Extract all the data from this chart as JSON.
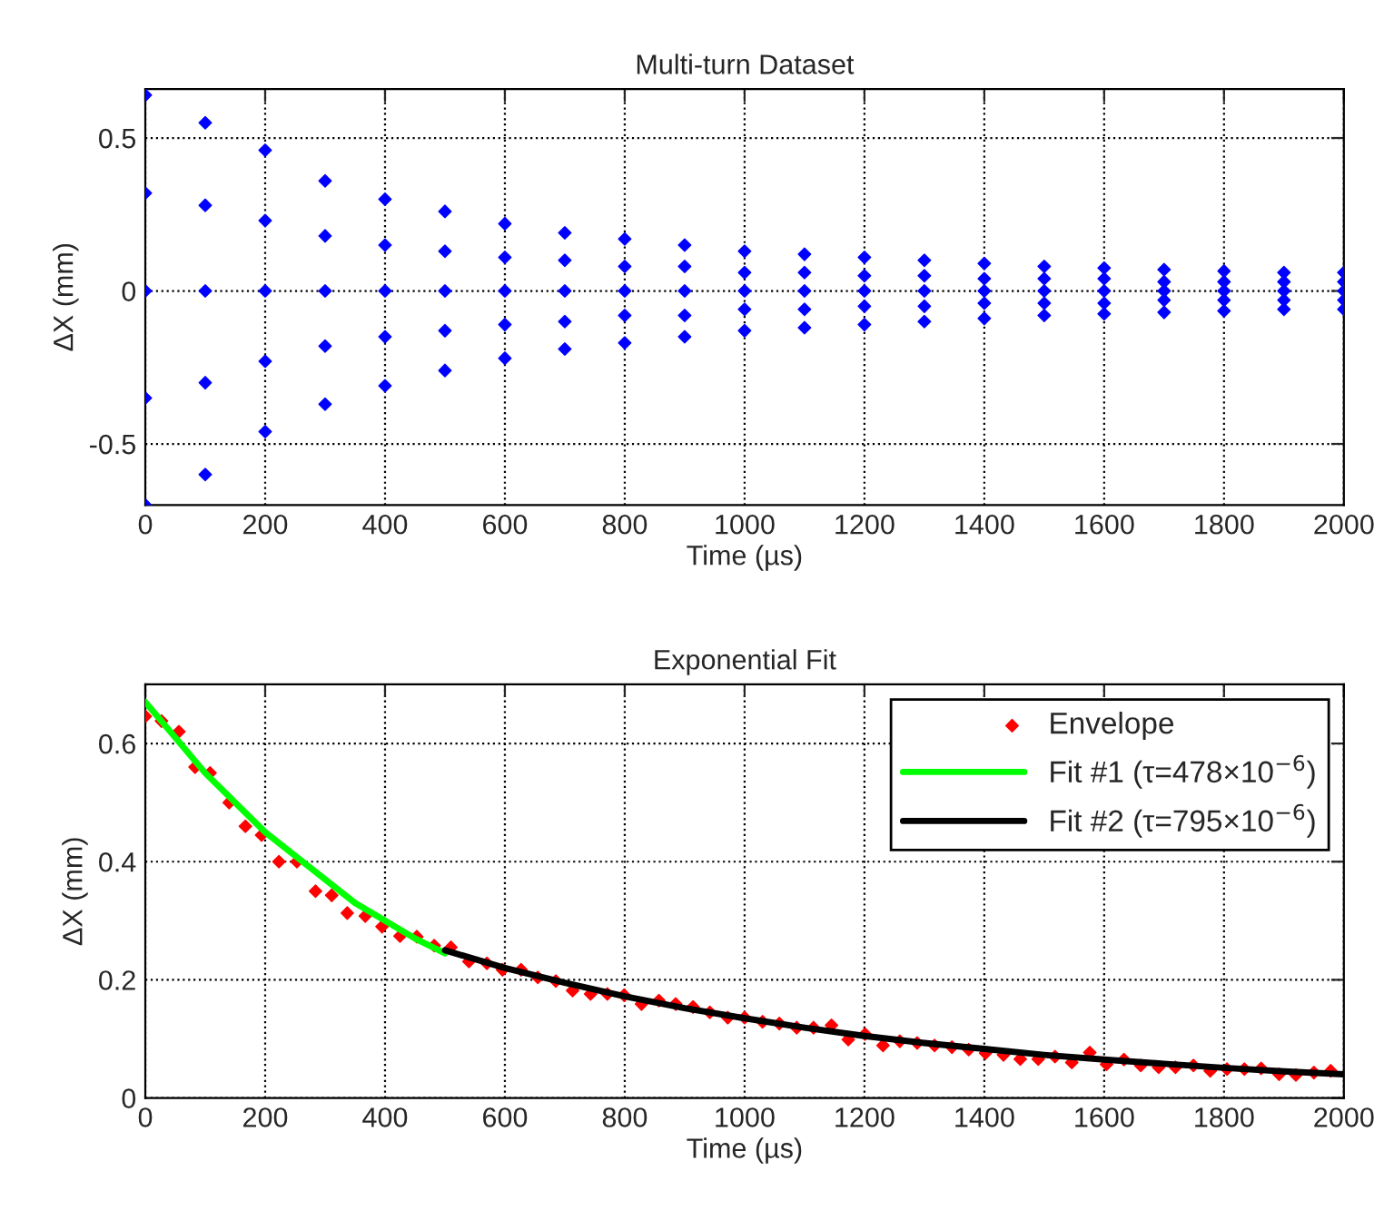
{
  "chart_data": [
    {
      "type": "scatter",
      "title": "Multi-turn Dataset",
      "xlabel": "Time (µs)",
      "ylabel": "ΔX (mm)",
      "xlim": [
        0,
        2000
      ],
      "xticks": [
        0,
        200,
        400,
        600,
        800,
        1000,
        1200,
        1400,
        1600,
        1800,
        2000
      ],
      "ylim": [
        -0.7,
        0.66
      ],
      "yticks": [
        -0.5,
        0,
        0.5
      ],
      "grid": true,
      "marker": "diamond",
      "series": [
        {
          "color": "#0000ff",
          "x": [
            0,
            100,
            200,
            300,
            400,
            500,
            600,
            700,
            800,
            900,
            1000,
            1100,
            1200,
            1300,
            1400,
            1500,
            1600,
            1700,
            1800,
            1900,
            2000
          ],
          "values": [
            0.64,
            0.55,
            0.46,
            0.36,
            0.3,
            0.26,
            0.22,
            0.19,
            0.17,
            0.15,
            0.13,
            0.12,
            0.11,
            0.1,
            0.09,
            0.08,
            0.075,
            0.07,
            0.065,
            0.06,
            0.06
          ]
        },
        {
          "color": "#0000ff",
          "x": [
            0,
            100,
            200,
            300,
            400,
            500,
            600,
            700,
            800,
            900,
            1000,
            1100,
            1200,
            1300,
            1400,
            1500,
            1600,
            1700,
            1800,
            1900,
            2000
          ],
          "values": [
            0.32,
            0.28,
            0.23,
            0.18,
            0.15,
            0.13,
            0.11,
            0.1,
            0.08,
            0.08,
            0.06,
            0.06,
            0.05,
            0.05,
            0.04,
            0.04,
            0.04,
            0.03,
            0.03,
            0.03,
            0.03
          ]
        },
        {
          "color": "#0000ff",
          "x": [
            0,
            100,
            200,
            300,
            400,
            500,
            600,
            700,
            800,
            900,
            1000,
            1100,
            1200,
            1300,
            1400,
            1500,
            1600,
            1700,
            1800,
            1900,
            2000
          ],
          "values": [
            0,
            0,
            0,
            0,
            0,
            0,
            0,
            0,
            0,
            0,
            0,
            0,
            0,
            0,
            0,
            0,
            0,
            0,
            0,
            0,
            0
          ]
        },
        {
          "color": "#0000ff",
          "x": [
            0,
            100,
            200,
            300,
            400,
            500,
            600,
            700,
            800,
            900,
            1000,
            1100,
            1200,
            1300,
            1400,
            1500,
            1600,
            1700,
            1800,
            1900,
            2000
          ],
          "values": [
            -0.35,
            -0.3,
            -0.23,
            -0.18,
            -0.15,
            -0.13,
            -0.11,
            -0.1,
            -0.08,
            -0.08,
            -0.06,
            -0.06,
            -0.05,
            -0.05,
            -0.04,
            -0.04,
            -0.04,
            -0.03,
            -0.03,
            -0.03,
            -0.03
          ]
        },
        {
          "color": "#0000ff",
          "x": [
            0,
            100,
            200,
            300,
            400,
            500,
            600,
            700,
            800,
            900,
            1000,
            1100,
            1200,
            1300,
            1400,
            1500,
            1600,
            1700,
            1800,
            1900,
            2000
          ],
          "values": [
            -0.7,
            -0.6,
            -0.46,
            -0.37,
            -0.31,
            -0.26,
            -0.22,
            -0.19,
            -0.17,
            -0.15,
            -0.13,
            -0.12,
            -0.11,
            -0.1,
            -0.09,
            -0.08,
            -0.075,
            -0.07,
            -0.065,
            -0.06,
            -0.06
          ]
        }
      ]
    },
    {
      "type": "line",
      "title": "Exponential Fit",
      "xlabel": "Time (µs)",
      "ylabel": "ΔX (mm)",
      "xlim": [
        0,
        2000
      ],
      "xticks": [
        0,
        200,
        400,
        600,
        800,
        1000,
        1200,
        1400,
        1600,
        1800,
        2000
      ],
      "ylim": [
        0,
        0.7
      ],
      "yticks": [
        0,
        0.2,
        0.4,
        0.6
      ],
      "grid": true,
      "legend": "top right",
      "series": [
        {
          "name": "Envelope",
          "type": "scatter",
          "marker": "diamond",
          "color": "#ff0000",
          "x": [
            0,
            27,
            56,
            83,
            108,
            140,
            167,
            194,
            223,
            253,
            284,
            311,
            337,
            367,
            395,
            425,
            453,
            482,
            510,
            540,
            570,
            596,
            627,
            655,
            685,
            713,
            743,
            771,
            799,
            828,
            857,
            885,
            914,
            942,
            972,
            1000,
            1030,
            1058,
            1087,
            1115,
            1145,
            1173,
            1201,
            1231,
            1259,
            1288,
            1317,
            1346,
            1374,
            1402,
            1432,
            1460,
            1490,
            1518,
            1546,
            1576,
            1604,
            1633,
            1661,
            1691,
            1719,
            1749,
            1777,
            1805,
            1834,
            1862,
            1892,
            1920,
            1950,
            1978
          ],
          "values": [
            0.646,
            0.638,
            0.62,
            0.56,
            0.55,
            0.5,
            0.46,
            0.445,
            0.4,
            0.4,
            0.35,
            0.343,
            0.313,
            0.308,
            0.29,
            0.274,
            0.273,
            0.258,
            0.255,
            0.231,
            0.228,
            0.217,
            0.217,
            0.204,
            0.198,
            0.182,
            0.176,
            0.176,
            0.174,
            0.159,
            0.165,
            0.159,
            0.154,
            0.145,
            0.136,
            0.136,
            0.129,
            0.126,
            0.119,
            0.119,
            0.123,
            0.099,
            0.108,
            0.089,
            0.096,
            0.093,
            0.089,
            0.086,
            0.082,
            0.076,
            0.073,
            0.066,
            0.066,
            0.07,
            0.06,
            0.077,
            0.057,
            0.065,
            0.055,
            0.052,
            0.052,
            0.055,
            0.046,
            0.049,
            0.049,
            0.05,
            0.04,
            0.039,
            0.043,
            0.046
          ]
        },
        {
          "name": "Fit #1 (τ=478×10$^{−6}$)",
          "type": "line",
          "line_style": "solid",
          "color": "#00ff00",
          "x": [
            0,
            50,
            100,
            150,
            200,
            250,
            300,
            350,
            400,
            450,
            500
          ],
          "values": [
            0.67,
            0.61,
            0.55,
            0.5,
            0.45,
            0.41,
            0.37,
            0.33,
            0.3,
            0.27,
            0.245
          ]
        },
        {
          "name": "Fit #2 (τ=795×10$^{−6}$)",
          "type": "line",
          "line_style": "solid",
          "color": "#000000",
          "x": [
            500,
            600,
            700,
            800,
            900,
            1000,
            1100,
            1200,
            1300,
            1400,
            1500,
            1600,
            1700,
            1800,
            1900,
            2000
          ],
          "values": [
            0.25,
            0.22,
            0.195,
            0.172,
            0.152,
            0.135,
            0.119,
            0.105,
            0.093,
            0.083,
            0.073,
            0.065,
            0.058,
            0.051,
            0.045,
            0.04
          ]
        }
      ]
    }
  ]
}
